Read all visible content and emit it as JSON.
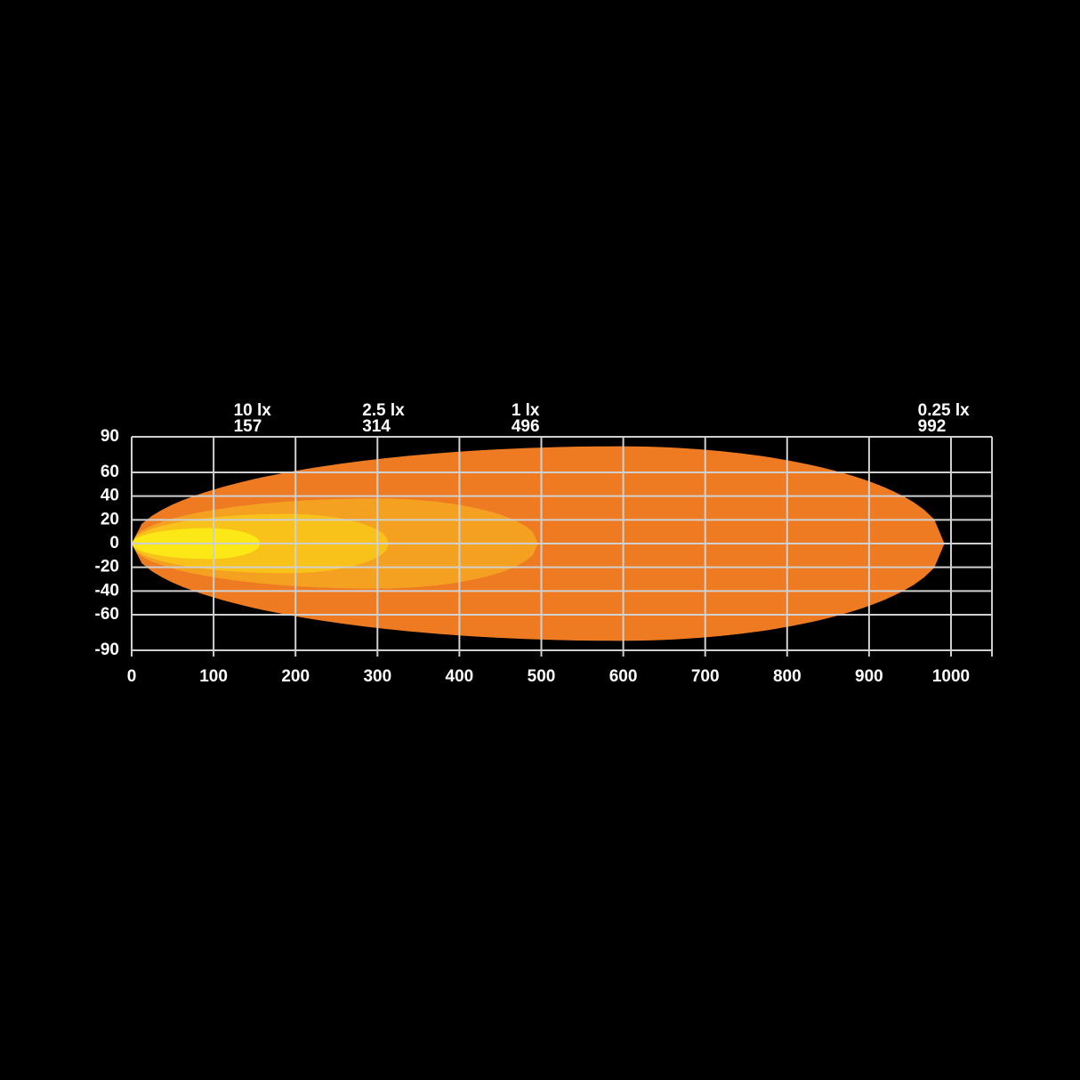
{
  "chart_data": {
    "type": "beam",
    "x": [
      0,
      0,
      0,
      0
    ],
    "series": [
      {
        "name": "0.25 lx",
        "reach": 992,
        "half_width": 82,
        "color": "#ee7b22"
      },
      {
        "name": "1 lx",
        "reach": 496,
        "half_width": 38,
        "color": "#f4a121"
      },
      {
        "name": "2.5 lx",
        "reach": 314,
        "half_width": 25,
        "color": "#f9c21b"
      },
      {
        "name": "10 lx",
        "reach": 157,
        "half_width": 13,
        "color": "#fbe816"
      }
    ],
    "xlim": [
      0,
      1050
    ],
    "xticks": [
      0,
      100,
      200,
      300,
      400,
      500,
      600,
      700,
      800,
      900,
      1000
    ],
    "ylim": [
      -90,
      90
    ],
    "yticks": [
      90,
      60,
      40,
      20,
      0,
      -20,
      -40,
      -60,
      -90
    ],
    "grid": true
  }
}
